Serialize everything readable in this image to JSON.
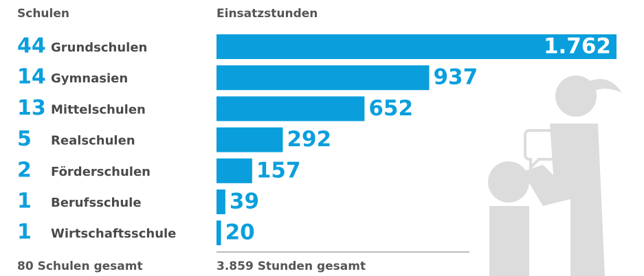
{
  "chart_data": {
    "type": "bar",
    "column_titles": [
      "Schulen",
      "Einsatzstunden"
    ],
    "categories": [
      "Grundschulen",
      "Gymnasien",
      "Mittelschulen",
      "Realschulen",
      "Förderschulen",
      "Berufsschule",
      "Wirtschaftsschule"
    ],
    "school_counts": [
      44,
      14,
      13,
      5,
      2,
      1,
      1
    ],
    "values": [
      1762,
      937,
      652,
      292,
      157,
      39,
      20
    ],
    "value_labels": [
      "1.762",
      "937",
      "652",
      "292",
      "157",
      "39",
      "20"
    ],
    "color": "#0a9fdc",
    "totals": [
      "80 Schulen gesamt",
      "3.859 Stunden gesamt"
    ]
  }
}
